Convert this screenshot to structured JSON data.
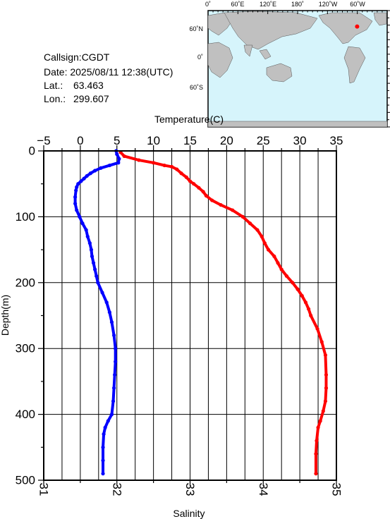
{
  "station": {
    "callsign": "Callsign:CGDT",
    "date": "Date:  2025/08/11 12:38(UTC)",
    "lat_label": "Lat.:",
    "lat_value": "63.463",
    "lon_label": "Lon.:",
    "lon_value": "299.607"
  },
  "map": {
    "top_labels": [
      "0˚",
      "60˚E",
      "120˚E",
      "180˚",
      "120˚W",
      "60˚W"
    ],
    "lat_labels": [
      "60˚N",
      "0˚",
      "60˚S"
    ],
    "ocean_color": "#d6f4fb",
    "land_color": "#c0c0c0",
    "marker_color": "#ff0000",
    "marker_lat": 63.463,
    "marker_lon": 299.607
  },
  "chart_data": {
    "type": "line",
    "y_axis_title": "Depth(m)",
    "ylim": [
      0,
      500
    ],
    "y_inverted": true,
    "y_ticks": [
      "0",
      "100",
      "200",
      "300",
      "400",
      "500"
    ],
    "top_axis": {
      "title": "Temperature(C)",
      "range": [
        -5,
        35
      ],
      "ticks": [
        "−5",
        "0",
        "5",
        "10",
        "15",
        "20",
        "25",
        "30",
        "35"
      ]
    },
    "bottom_axis": {
      "title": "Salinity",
      "range": [
        31,
        35
      ],
      "ticks": [
        "31",
        "32",
        "33",
        "34",
        "35"
      ]
    },
    "grid": true,
    "series": [
      {
        "variable": "temperature",
        "axis": "top",
        "color": "#0000ff",
        "depth": [
          0,
          5,
          12,
          18,
          22,
          26,
          30,
          34,
          38,
          42,
          46,
          50,
          55,
          60,
          70,
          80,
          90,
          100,
          110,
          120,
          130,
          140,
          150,
          160,
          170,
          180,
          190,
          200,
          215,
          230,
          245,
          260,
          280,
          300,
          320,
          340,
          360,
          380,
          400,
          410,
          420,
          430,
          450,
          470,
          490
        ],
        "values": [
          4.9,
          5.0,
          5.3,
          5.2,
          4.0,
          2.8,
          2.0,
          1.4,
          0.9,
          0.5,
          0.1,
          -0.3,
          -0.5,
          -0.6,
          -0.7,
          -0.7,
          -0.5,
          -0.1,
          0.3,
          0.8,
          1.0,
          1.3,
          1.5,
          1.6,
          1.8,
          2.0,
          2.2,
          2.4,
          3.0,
          3.6,
          4.0,
          4.3,
          4.6,
          4.8,
          4.8,
          4.7,
          4.6,
          4.5,
          4.3,
          3.8,
          3.4,
          3.2,
          3.1,
          3.1,
          3.1
        ]
      },
      {
        "variable": "salinity",
        "axis": "bottom",
        "color": "#ff0000",
        "depth": [
          2,
          8,
          14,
          18,
          22,
          24,
          28,
          34,
          40,
          46,
          50,
          56,
          62,
          68,
          75,
          82,
          90,
          100,
          110,
          120,
          130,
          140,
          150,
          160,
          170,
          180,
          190,
          200,
          210,
          220,
          230,
          240,
          250,
          270,
          290,
          310,
          340,
          360,
          380,
          395,
          410,
          420,
          440,
          460,
          490
        ],
        "values": [
          32.05,
          32.1,
          32.3,
          32.5,
          32.65,
          32.75,
          32.82,
          32.88,
          32.95,
          33.0,
          33.05,
          33.12,
          33.18,
          33.22,
          33.3,
          33.42,
          33.58,
          33.72,
          33.82,
          33.92,
          33.98,
          34.02,
          34.07,
          34.15,
          34.2,
          34.25,
          34.32,
          34.4,
          34.47,
          34.53,
          34.58,
          34.62,
          34.65,
          34.74,
          34.8,
          34.85,
          34.86,
          34.86,
          34.85,
          34.82,
          34.78,
          34.75,
          34.73,
          34.72,
          34.72
        ]
      }
    ]
  }
}
